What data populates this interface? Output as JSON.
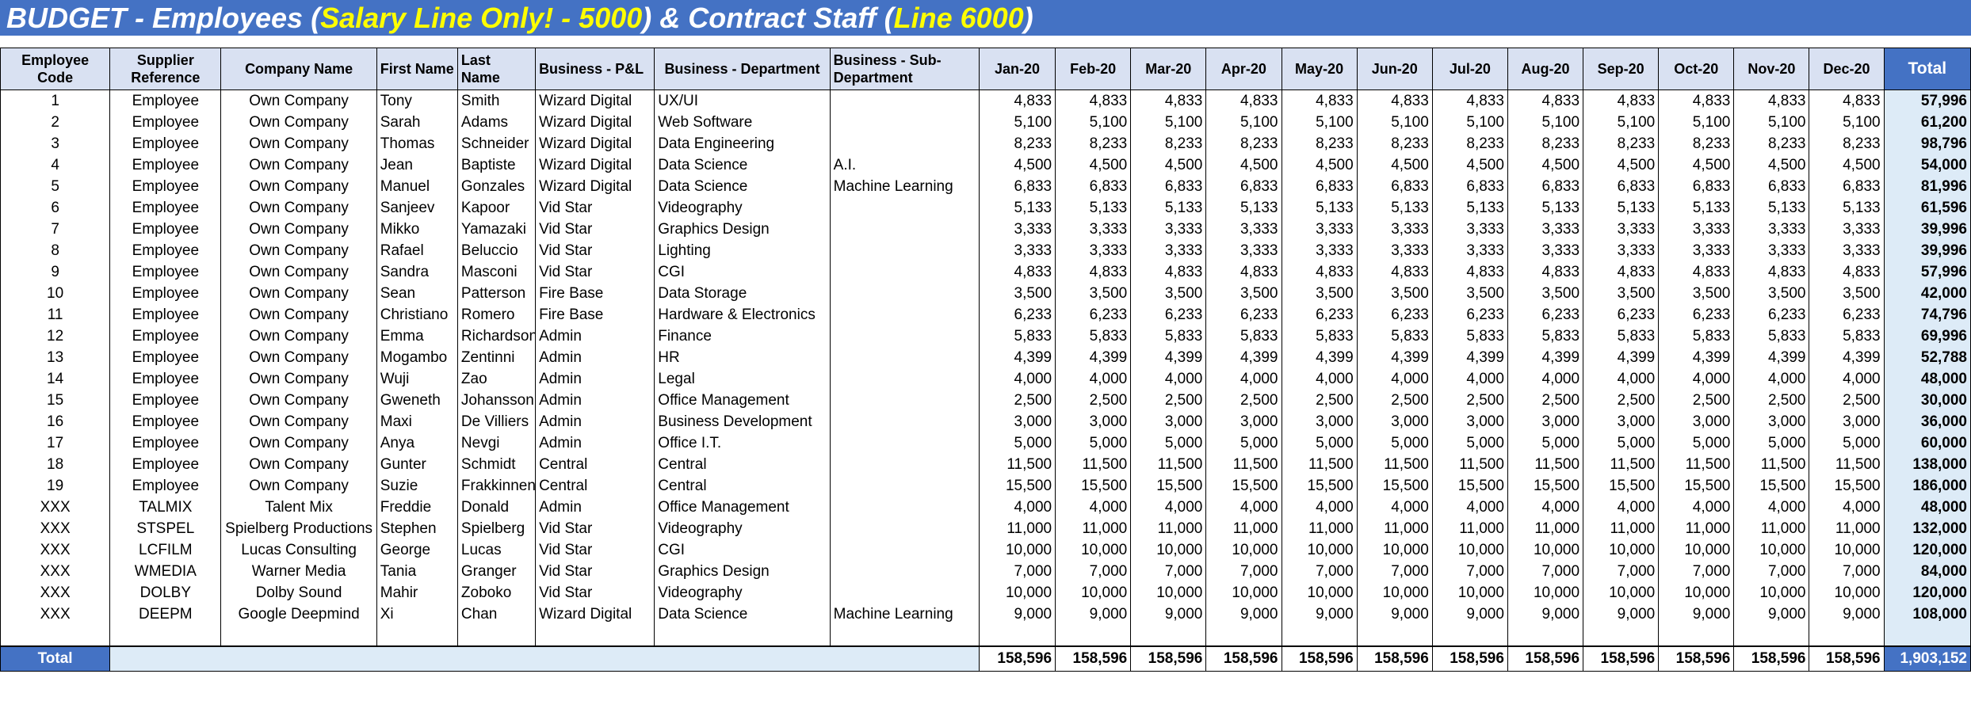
{
  "title": {
    "part1": "BUDGET - Employees (",
    "highlight1": "Salary Line Only! - 5000",
    "part2": ") & Contract Staff (",
    "highlight2": "Line 6000",
    "part3": ")"
  },
  "headers": [
    "Employee Code",
    "Supplier Reference",
    "Company Name",
    "First Name",
    "Last Name",
    "Business - P&L",
    "Business - Department",
    "Business - Sub-Department",
    "Jan-20",
    "Feb-20",
    "Mar-20",
    "Apr-20",
    "May-20",
    "Jun-20",
    "Jul-20",
    "Aug-20",
    "Sep-20",
    "Oct-20",
    "Nov-20",
    "Dec-20",
    "Total"
  ],
  "rows": [
    {
      "code": "1",
      "supplier": "Employee",
      "company": "Own Company",
      "first": "Tony",
      "last": "Smith",
      "pl": "Wizard Digital",
      "dept": "UX/UI",
      "subdept": "",
      "monthly": "4,833",
      "total": "57,996"
    },
    {
      "code": "2",
      "supplier": "Employee",
      "company": "Own Company",
      "first": "Sarah",
      "last": "Adams",
      "pl": "Wizard Digital",
      "dept": "Web Software",
      "subdept": "",
      "monthly": "5,100",
      "total": "61,200"
    },
    {
      "code": "3",
      "supplier": "Employee",
      "company": "Own Company",
      "first": "Thomas",
      "last": "Schneider",
      "pl": "Wizard Digital",
      "dept": "Data Engineering",
      "subdept": "",
      "monthly": "8,233",
      "total": "98,796"
    },
    {
      "code": "4",
      "supplier": "Employee",
      "company": "Own Company",
      "first": "Jean",
      "last": "Baptiste",
      "pl": "Wizard Digital",
      "dept": "Data Science",
      "subdept": "A.I.",
      "monthly": "4,500",
      "total": "54,000"
    },
    {
      "code": "5",
      "supplier": "Employee",
      "company": "Own Company",
      "first": "Manuel",
      "last": "Gonzales",
      "pl": "Wizard Digital",
      "dept": "Data Science",
      "subdept": "Machine Learning",
      "monthly": "6,833",
      "total": "81,996"
    },
    {
      "code": "6",
      "supplier": "Employee",
      "company": "Own Company",
      "first": "Sanjeev",
      "last": "Kapoor",
      "pl": "Vid Star",
      "dept": "Videography",
      "subdept": "",
      "monthly": "5,133",
      "total": "61,596"
    },
    {
      "code": "7",
      "supplier": "Employee",
      "company": "Own Company",
      "first": "Mikko",
      "last": "Yamazaki",
      "pl": "Vid Star",
      "dept": "Graphics Design",
      "subdept": "",
      "monthly": "3,333",
      "total": "39,996"
    },
    {
      "code": "8",
      "supplier": "Employee",
      "company": "Own Company",
      "first": "Rafael",
      "last": "Beluccio",
      "pl": "Vid Star",
      "dept": "Lighting",
      "subdept": "",
      "monthly": "3,333",
      "total": "39,996"
    },
    {
      "code": "9",
      "supplier": "Employee",
      "company": "Own Company",
      "first": "Sandra",
      "last": "Masconi",
      "pl": "Vid Star",
      "dept": "CGI",
      "subdept": "",
      "monthly": "4,833",
      "total": "57,996"
    },
    {
      "code": "10",
      "supplier": "Employee",
      "company": "Own Company",
      "first": "Sean",
      "last": "Patterson",
      "pl": "Fire Base",
      "dept": "Data Storage",
      "subdept": "",
      "monthly": "3,500",
      "total": "42,000"
    },
    {
      "code": "11",
      "supplier": "Employee",
      "company": "Own Company",
      "first": "Christiano",
      "last": "Romero",
      "pl": "Fire Base",
      "dept": "Hardware & Electronics",
      "subdept": "",
      "monthly": "6,233",
      "total": "74,796"
    },
    {
      "code": "12",
      "supplier": "Employee",
      "company": "Own Company",
      "first": "Emma",
      "last": "Richardson",
      "pl": "Admin",
      "dept": "Finance",
      "subdept": "",
      "monthly": "5,833",
      "total": "69,996"
    },
    {
      "code": "13",
      "supplier": "Employee",
      "company": "Own Company",
      "first": "Mogambo",
      "last": "Zentinni",
      "pl": "Admin",
      "dept": "HR",
      "subdept": "",
      "monthly": "4,399",
      "total": "52,788"
    },
    {
      "code": "14",
      "supplier": "Employee",
      "company": "Own Company",
      "first": "Wuji",
      "last": "Zao",
      "pl": "Admin",
      "dept": "Legal",
      "subdept": "",
      "monthly": "4,000",
      "total": "48,000"
    },
    {
      "code": "15",
      "supplier": "Employee",
      "company": "Own Company",
      "first": "Gweneth",
      "last": "Johansson",
      "pl": "Admin",
      "dept": "Office Management",
      "subdept": "",
      "monthly": "2,500",
      "total": "30,000"
    },
    {
      "code": "16",
      "supplier": "Employee",
      "company": "Own Company",
      "first": "Maxi",
      "last": "De Villiers",
      "pl": "Admin",
      "dept": "Business Development",
      "subdept": "",
      "monthly": "3,000",
      "total": "36,000"
    },
    {
      "code": "17",
      "supplier": "Employee",
      "company": "Own Company",
      "first": "Anya",
      "last": "Nevgi",
      "pl": "Admin",
      "dept": "Office I.T.",
      "subdept": "",
      "monthly": "5,000",
      "total": "60,000"
    },
    {
      "code": "18",
      "supplier": "Employee",
      "company": "Own Company",
      "first": "Gunter",
      "last": "Schmidt",
      "pl": "Central",
      "dept": "Central",
      "subdept": "",
      "monthly": "11,500",
      "total": "138,000"
    },
    {
      "code": "19",
      "supplier": "Employee",
      "company": "Own Company",
      "first": "Suzie",
      "last": "Frakkinnen",
      "pl": "Central",
      "dept": "Central",
      "subdept": "",
      "monthly": "15,500",
      "total": "186,000"
    },
    {
      "code": "XXX",
      "supplier": "TALMIX",
      "company": "Talent Mix",
      "first": "Freddie",
      "last": "Donald",
      "pl": "Admin",
      "dept": "Office Management",
      "subdept": "",
      "monthly": "4,000",
      "total": "48,000"
    },
    {
      "code": "XXX",
      "supplier": "STSPEL",
      "company": "Spielberg Productions",
      "first": "Stephen",
      "last": "Spielberg",
      "pl": "Vid Star",
      "dept": "Videography",
      "subdept": "",
      "monthly": "11,000",
      "total": "132,000"
    },
    {
      "code": "XXX",
      "supplier": "LCFILM",
      "company": "Lucas Consulting",
      "first": "George",
      "last": "Lucas",
      "pl": "Vid Star",
      "dept": "CGI",
      "subdept": "",
      "monthly": "10,000",
      "total": "120,000"
    },
    {
      "code": "XXX",
      "supplier": "WMEDIA",
      "company": "Warner Media",
      "first": "Tania",
      "last": "Granger",
      "pl": "Vid Star",
      "dept": "Graphics Design",
      "subdept": "",
      "monthly": "7,000",
      "total": "84,000"
    },
    {
      "code": "XXX",
      "supplier": "DOLBY",
      "company": "Dolby Sound",
      "first": "Mahir",
      "last": "Zoboko",
      "pl": "Vid Star",
      "dept": "Videography",
      "subdept": "",
      "monthly": "10,000",
      "total": "120,000"
    },
    {
      "code": "XXX",
      "supplier": "DEEPM",
      "company": "Google Deepmind",
      "first": "Xi",
      "last": "Chan",
      "pl": "Wizard Digital",
      "dept": "Data Science",
      "subdept": "Machine Learning",
      "monthly": "9,000",
      "total": "108,000"
    }
  ],
  "footer": {
    "label": "Total",
    "monthly_total": "158,596",
    "grand_total": "1,903,152"
  },
  "colors": {
    "title_bar": "#4472c4",
    "title_highlight": "#ffff00",
    "header_fill": "#d9e1f2",
    "total_column_fill": "#ddebf7"
  }
}
